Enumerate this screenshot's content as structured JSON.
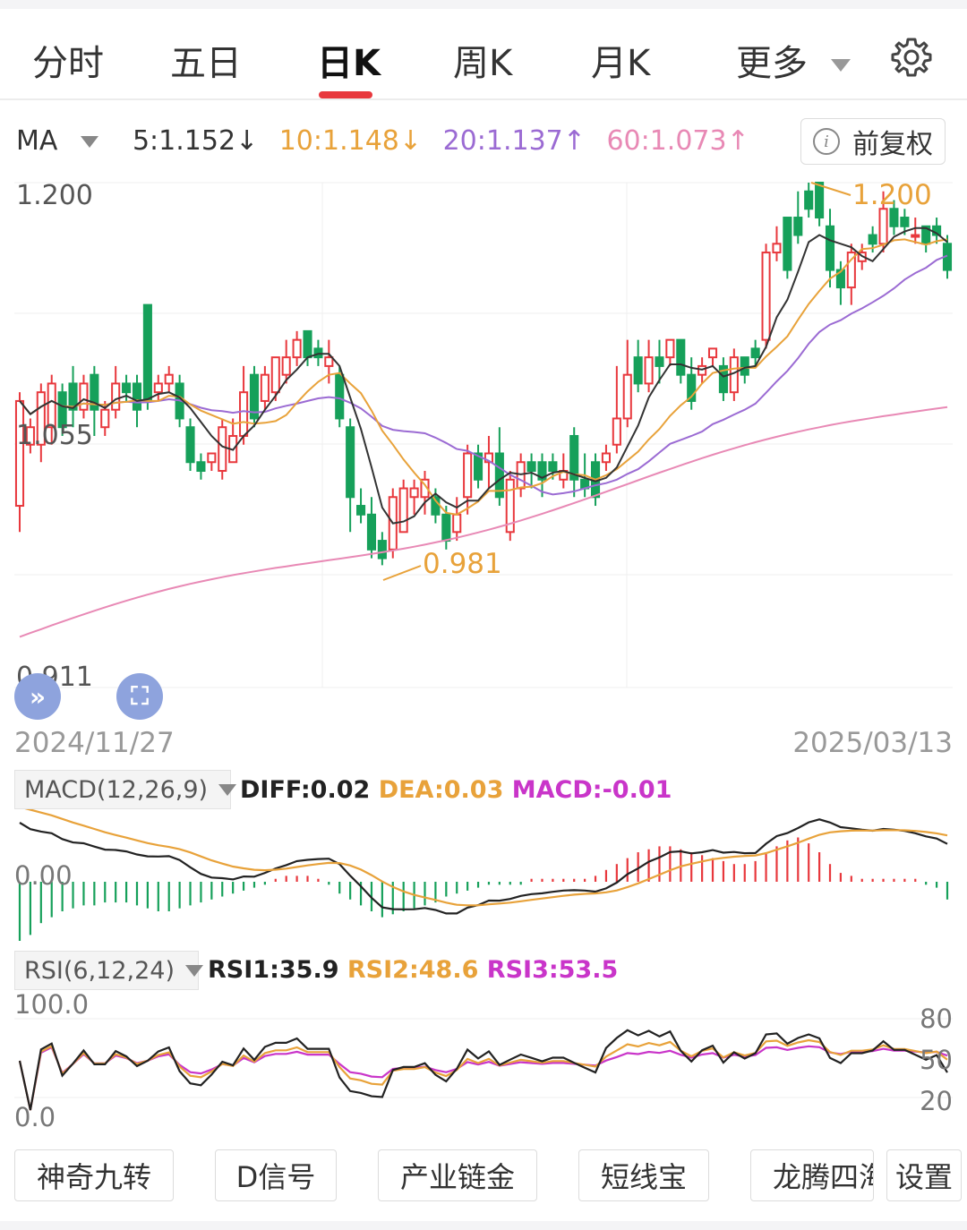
{
  "tabs": [
    {
      "label": "分时"
    },
    {
      "label": "五日"
    },
    {
      "label": "日K",
      "active": true
    },
    {
      "label": "周K"
    },
    {
      "label": "月K"
    },
    {
      "label": "更多"
    }
  ],
  "settings_icon": "gear-icon",
  "ma_bar": {
    "label": "MA",
    "ma5": "5:1.152↓",
    "ma10": "10:1.148↓",
    "ma20": "20:1.137↑",
    "ma60": "60:1.073↑",
    "colors": {
      "ma5": "#333333",
      "ma10": "#e8a23a",
      "ma20": "#9b6bd3",
      "ma60": "#e889b5"
    },
    "arrow_down_color": "#1a9b56",
    "arrow_up_color": "#e8383d"
  },
  "adjust_button": {
    "label": "前复权",
    "icon": "info-icon"
  },
  "main_chart": {
    "y_max_label": "1.200",
    "y_mid_label": "1.055",
    "y_min_label": "0.911",
    "high_marker": "1.200",
    "low_marker": "0.981",
    "start_date": "2024/11/27",
    "end_date": "2025/03/13"
  },
  "float_buttons": {
    "expand_left": "double-chevron-icon",
    "fullscreen": "fullscreen-icon"
  },
  "macd": {
    "selector": "MACD(12,26,9)",
    "diff": "DIFF:0.02",
    "dea": "DEA:0.03",
    "macd": "MACD:-0.01",
    "zero_label": "0.00"
  },
  "rsi": {
    "selector": "RSI(6,12,24)",
    "rsi1": "RSI1:35.9",
    "rsi2": "RSI2:48.6",
    "rsi3": "RSI3:53.5",
    "top_label": "100.0",
    "bottom_label": "0.0",
    "r80": "80",
    "r50": "50",
    "r20": "20"
  },
  "bottom_buttons": [
    "神奇九转",
    "D信号",
    "产业链金",
    "短线宝",
    "龙腾四海",
    "设置"
  ],
  "chart_data": {
    "type": "candlestick",
    "series": [
      {
        "name": "K",
        "note": "daily OHLC"
      },
      {
        "name": "MA5"
      },
      {
        "name": "MA10"
      },
      {
        "name": "MA20"
      },
      {
        "name": "MA60"
      }
    ],
    "ylim": [
      0.911,
      1.2
    ],
    "candles": [
      [
        1.015,
        1.075,
        1.0,
        1.08
      ],
      [
        1.05,
        1.06,
        1.045,
        1.065
      ],
      [
        1.05,
        1.08,
        1.04,
        1.085
      ],
      [
        1.06,
        1.085,
        1.05,
        1.09
      ],
      [
        1.08,
        1.06,
        1.055,
        1.085
      ],
      [
        1.085,
        1.07,
        1.06,
        1.095
      ],
      [
        1.07,
        1.085,
        1.065,
        1.09
      ],
      [
        1.09,
        1.07,
        1.055,
        1.095
      ],
      [
        1.06,
        1.07,
        1.055,
        1.075
      ],
      [
        1.07,
        1.085,
        1.065,
        1.095
      ],
      [
        1.085,
        1.08,
        1.075,
        1.09
      ],
      [
        1.085,
        1.07,
        1.06,
        1.09
      ],
      [
        1.13,
        1.075,
        1.07,
        1.13
      ],
      [
        1.08,
        1.085,
        1.075,
        1.09
      ],
      [
        1.085,
        1.09,
        1.08,
        1.095
      ],
      [
        1.085,
        1.065,
        1.06,
        1.09
      ],
      [
        1.06,
        1.04,
        1.035,
        1.065
      ],
      [
        1.04,
        1.035,
        1.03,
        1.045
      ],
      [
        1.04,
        1.045,
        1.035,
        1.045
      ],
      [
        1.035,
        1.06,
        1.03,
        1.065
      ],
      [
        1.04,
        1.055,
        1.04,
        1.065
      ],
      [
        1.055,
        1.08,
        1.05,
        1.095
      ],
      [
        1.09,
        1.065,
        1.06,
        1.095
      ],
      [
        1.075,
        1.09,
        1.07,
        1.095
      ],
      [
        1.08,
        1.1,
        1.075,
        1.1
      ],
      [
        1.09,
        1.1,
        1.085,
        1.11
      ],
      [
        1.1,
        1.11,
        1.095,
        1.115
      ],
      [
        1.115,
        1.1,
        1.095,
        1.115
      ],
      [
        1.105,
        1.1,
        1.095,
        1.11
      ],
      [
        1.095,
        1.1,
        1.085,
        1.11
      ],
      [
        1.09,
        1.065,
        1.06,
        1.095
      ],
      [
        1.06,
        1.02,
        1.0,
        1.065
      ],
      [
        1.015,
        1.01,
        1.005,
        1.025
      ],
      [
        1.01,
        0.99,
        0.985,
        1.02
      ],
      [
        0.995,
        0.985,
        0.981,
        1.0
      ],
      [
        0.99,
        1.02,
        0.985,
        1.025
      ],
      [
        1.0,
        1.025,
        1.0,
        1.03
      ],
      [
        1.02,
        1.025,
        1.01,
        1.03
      ],
      [
        1.02,
        1.03,
        1.01,
        1.035
      ],
      [
        1.02,
        1.01,
        1.005,
        1.025
      ],
      [
        1.01,
        0.995,
        0.99,
        1.015
      ],
      [
        1.0,
        1.01,
        0.995,
        1.02
      ],
      [
        1.02,
        1.045,
        1.01,
        1.05
      ],
      [
        1.045,
        1.03,
        1.025,
        1.05
      ],
      [
        1.04,
        1.045,
        1.025,
        1.055
      ],
      [
        1.045,
        1.02,
        1.015,
        1.06
      ],
      [
        1.0,
        1.03,
        0.995,
        1.035
      ],
      [
        1.025,
        1.04,
        1.02,
        1.045
      ],
      [
        1.04,
        1.035,
        1.025,
        1.045
      ],
      [
        1.04,
        1.03,
        1.02,
        1.045
      ],
      [
        1.04,
        1.035,
        1.03,
        1.045
      ],
      [
        1.03,
        1.035,
        1.025,
        1.045
      ],
      [
        1.055,
        1.03,
        1.02,
        1.06
      ],
      [
        1.03,
        1.025,
        1.02,
        1.045
      ],
      [
        1.04,
        1.02,
        1.015,
        1.045
      ],
      [
        1.04,
        1.045,
        1.035,
        1.05
      ],
      [
        1.05,
        1.065,
        1.045,
        1.095
      ],
      [
        1.065,
        1.09,
        1.06,
        1.11
      ],
      [
        1.1,
        1.085,
        1.08,
        1.11
      ],
      [
        1.085,
        1.1,
        1.08,
        1.11
      ],
      [
        1.1,
        1.095,
        1.085,
        1.11
      ],
      [
        1.1,
        1.11,
        1.095,
        1.11
      ],
      [
        1.11,
        1.09,
        1.085,
        1.11
      ],
      [
        1.09,
        1.075,
        1.07,
        1.1
      ],
      [
        1.09,
        1.095,
        1.085,
        1.1
      ],
      [
        1.1,
        1.105,
        1.095,
        1.105
      ],
      [
        1.095,
        1.08,
        1.075,
        1.1
      ],
      [
        1.08,
        1.1,
        1.075,
        1.105
      ],
      [
        1.1,
        1.09,
        1.085,
        1.1
      ],
      [
        1.105,
        1.1,
        1.095,
        1.11
      ],
      [
        1.11,
        1.16,
        1.105,
        1.165
      ],
      [
        1.16,
        1.165,
        1.155,
        1.175
      ],
      [
        1.18,
        1.15,
        1.145,
        1.18
      ],
      [
        1.18,
        1.17,
        1.165,
        1.195
      ],
      [
        1.195,
        1.185,
        1.18,
        1.2
      ],
      [
        1.2,
        1.18,
        1.175,
        1.2
      ],
      [
        1.175,
        1.15,
        1.14,
        1.185
      ],
      [
        1.15,
        1.14,
        1.13,
        1.155
      ],
      [
        1.14,
        1.16,
        1.13,
        1.165
      ],
      [
        1.155,
        1.16,
        1.15,
        1.165
      ],
      [
        1.17,
        1.165,
        1.16,
        1.175
      ],
      [
        1.165,
        1.185,
        1.16,
        1.195
      ],
      [
        1.185,
        1.175,
        1.17,
        1.19
      ],
      [
        1.18,
        1.175,
        1.17,
        1.185
      ],
      [
        1.17,
        1.17,
        1.165,
        1.18
      ],
      [
        1.175,
        1.165,
        1.16,
        1.175
      ],
      [
        1.175,
        1.17,
        1.165,
        1.18
      ],
      [
        1.165,
        1.15,
        1.145,
        1.17
      ]
    ],
    "macd_hist": [
      -0.02,
      -0.018,
      -0.014,
      -0.012,
      -0.01,
      -0.009,
      -0.008,
      -0.008,
      -0.007,
      -0.007,
      -0.007,
      -0.008,
      -0.009,
      -0.01,
      -0.01,
      -0.009,
      -0.008,
      -0.007,
      -0.006,
      -0.005,
      -0.004,
      -0.003,
      -0.002,
      -0.001,
      0.001,
      0.002,
      0.002,
      0.002,
      0.001,
      -0.001,
      -0.004,
      -0.006,
      -0.008,
      -0.01,
      -0.012,
      -0.011,
      -0.01,
      -0.009,
      -0.008,
      -0.007,
      -0.005,
      -0.004,
      -0.003,
      -0.002,
      -0.001,
      -0.001,
      -0.001,
      -0.001,
      0.001,
      0.001,
      0.001,
      0.001,
      0.001,
      0.001,
      0.002,
      0.004,
      0.006,
      0.008,
      0.01,
      0.011,
      0.012,
      0.012,
      0.011,
      0.01,
      0.009,
      0.008,
      0.007,
      0.006,
      0.006,
      0.007,
      0.01,
      0.012,
      0.014,
      0.015,
      0.013,
      0.01,
      0.006,
      0.003,
      0.002,
      0.001,
      0.001,
      0.001,
      0.001,
      0.001,
      0.001,
      -0.001,
      -0.002,
      -0.006
    ]
  }
}
